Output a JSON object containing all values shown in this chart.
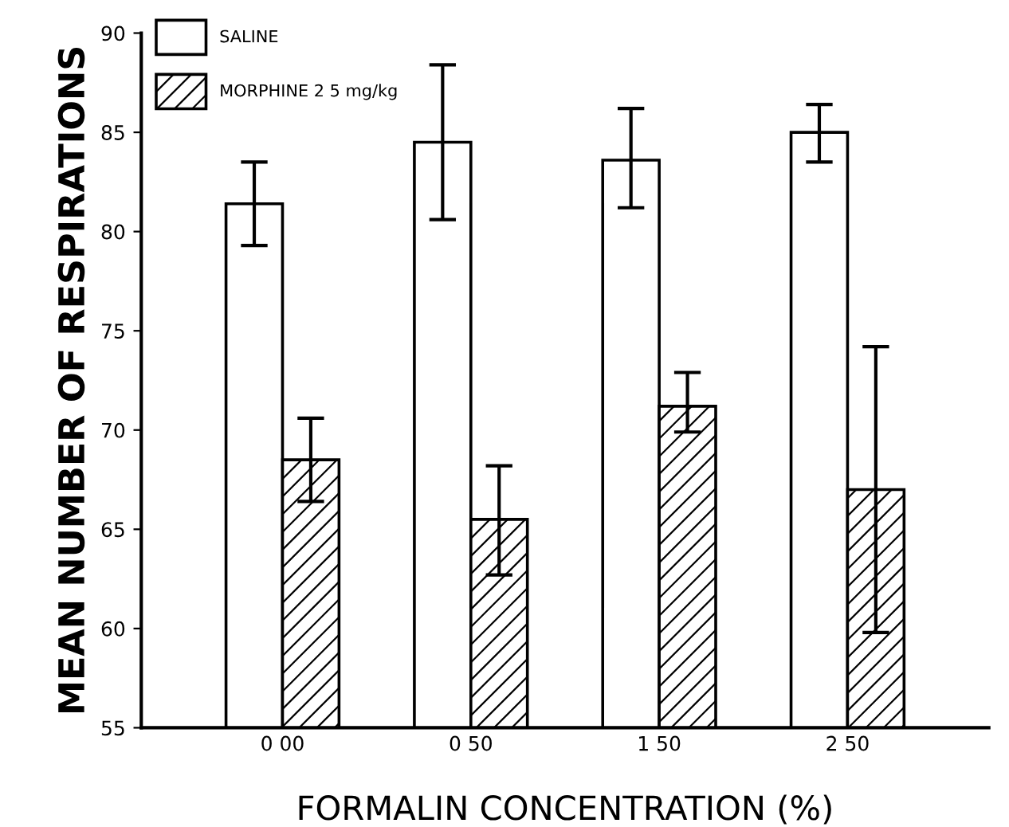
{
  "chart_data": {
    "type": "bar",
    "xlabel": "FORMALIN CONCENTRATION (%)",
    "ylabel": "MEAN NUMBER OF RESPIRATIONS",
    "categories": [
      "0 00",
      "0 50",
      "1 50",
      "2 50"
    ],
    "series": [
      {
        "name": "SALINE",
        "color": "#ffffff",
        "values": [
          81.4,
          84.5,
          83.6,
          85.0
        ],
        "errors": [
          [
            79.3,
            83.5
          ],
          [
            80.6,
            88.4
          ],
          [
            81.2,
            86.2
          ],
          [
            83.5,
            86.4
          ]
        ]
      },
      {
        "name": "MORPHINE 2 5 mg/kg",
        "color": "#000000",
        "values": [
          68.5,
          65.5,
          71.2,
          67.0
        ],
        "errors": [
          [
            66.4,
            70.6
          ],
          [
            62.7,
            68.2
          ],
          [
            69.9,
            72.9
          ],
          [
            59.8,
            74.2
          ]
        ]
      }
    ],
    "ylim": [
      55,
      90
    ],
    "yticks": [
      55,
      60,
      65,
      70,
      75,
      80,
      85,
      90
    ],
    "grid": false,
    "legend": "top left"
  }
}
